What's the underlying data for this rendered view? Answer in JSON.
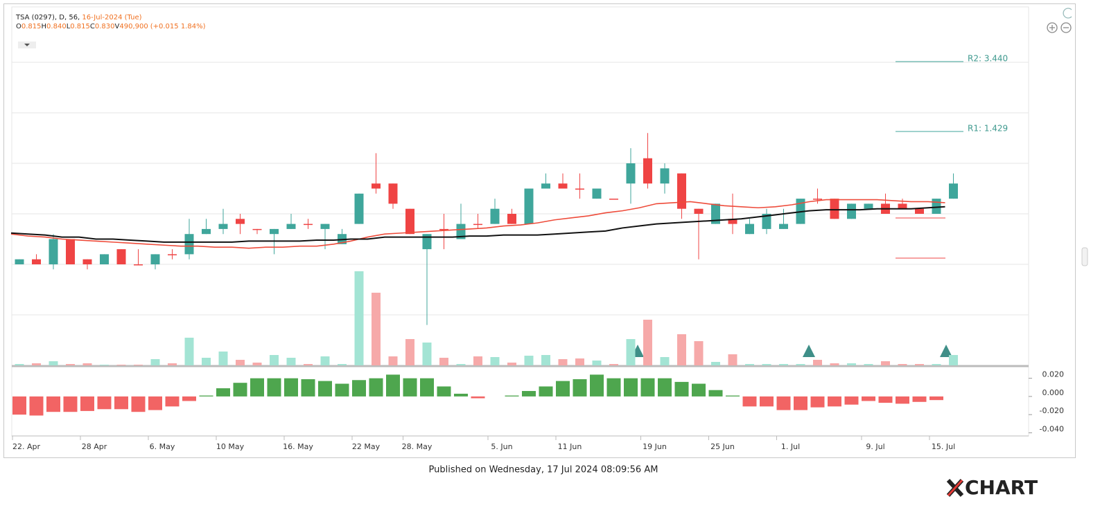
{
  "header": {
    "symbol": "TSA (0297), D, 56,",
    "date": "16-Jul-2024 (Tue)",
    "quote": [
      {
        "key": "O",
        "value": "0.815"
      },
      {
        "key": "H",
        "value": "0.840"
      },
      {
        "key": "L",
        "value": "0.815"
      },
      {
        "key": "C",
        "value": "0.830"
      },
      {
        "key": "V",
        "value": "490,900"
      }
    ],
    "change": "(+0.015 1.84%)"
  },
  "chart_data": {
    "type": "candlestick",
    "categories": [
      "22. Apr",
      null,
      null,
      null,
      "28 Apr",
      null,
      null,
      null,
      "6. May",
      null,
      null,
      null,
      "10 May",
      null,
      null,
      null,
      "16. May",
      null,
      null,
      null,
      "22 May",
      null,
      null,
      "28. May",
      null,
      null,
      null,
      null,
      "5. Jun",
      null,
      null,
      null,
      "11 Jun",
      null,
      null,
      null,
      null,
      "19 Jun",
      null,
      null,
      null,
      "25 Jun",
      null,
      null,
      null,
      "1. Jul",
      null,
      null,
      null,
      null,
      "9. Jul",
      null,
      null,
      null,
      "15. Jul",
      null
    ],
    "open": [
      0.75,
      0.755,
      0.75,
      0.775,
      0.755,
      0.75,
      0.765,
      0.75,
      0.75,
      0.76,
      0.76,
      0.78,
      0.785,
      0.795,
      0.785,
      0.78,
      0.785,
      0.79,
      0.785,
      0.77,
      0.79,
      0.83,
      0.83,
      0.805,
      0.765,
      0.785,
      0.775,
      0.79,
      0.79,
      0.8,
      0.79,
      0.825,
      0.83,
      0.825,
      0.815,
      0.815,
      0.83,
      0.855,
      0.83,
      0.84,
      0.805,
      0.79,
      0.795,
      0.78,
      0.785,
      0.785,
      0.79,
      0.815,
      0.815,
      0.795,
      0.805,
      0.81,
      0.81,
      0.805,
      0.8,
      0.815
    ],
    "high": [
      0.755,
      0.76,
      0.78,
      0.775,
      0.755,
      0.76,
      0.765,
      0.765,
      0.76,
      0.765,
      0.795,
      0.795,
      0.805,
      0.8,
      0.785,
      0.785,
      0.8,
      0.795,
      0.79,
      0.785,
      0.82,
      0.86,
      0.83,
      0.805,
      0.78,
      0.8,
      0.81,
      0.8,
      0.815,
      0.805,
      0.825,
      0.84,
      0.84,
      0.84,
      0.825,
      0.815,
      0.865,
      0.88,
      0.85,
      0.84,
      0.805,
      0.81,
      0.82,
      0.795,
      0.805,
      0.805,
      0.815,
      0.825,
      0.815,
      0.81,
      0.81,
      0.82,
      0.815,
      0.805,
      0.815,
      0.84
    ],
    "low": [
      0.75,
      0.75,
      0.745,
      0.75,
      0.745,
      0.75,
      0.75,
      0.75,
      0.745,
      0.755,
      0.755,
      0.78,
      0.78,
      0.78,
      0.78,
      0.76,
      0.785,
      0.785,
      0.765,
      0.77,
      0.79,
      0.82,
      0.805,
      0.78,
      0.69,
      0.765,
      0.775,
      0.785,
      0.79,
      0.79,
      0.79,
      0.825,
      0.825,
      0.815,
      0.815,
      0.815,
      0.81,
      0.825,
      0.82,
      0.795,
      0.755,
      0.79,
      0.78,
      0.78,
      0.78,
      0.785,
      0.79,
      0.81,
      0.795,
      0.795,
      0.805,
      0.8,
      0.805,
      0.8,
      0.8,
      0.815
    ],
    "close": [
      0.755,
      0.75,
      0.775,
      0.75,
      0.75,
      0.76,
      0.75,
      0.75,
      0.76,
      0.76,
      0.78,
      0.785,
      0.79,
      0.79,
      0.785,
      0.785,
      0.79,
      0.79,
      0.79,
      0.78,
      0.82,
      0.825,
      0.81,
      0.78,
      0.78,
      0.785,
      0.79,
      0.79,
      0.805,
      0.79,
      0.825,
      0.83,
      0.825,
      0.825,
      0.825,
      0.815,
      0.85,
      0.83,
      0.845,
      0.805,
      0.8,
      0.81,
      0.79,
      0.79,
      0.8,
      0.79,
      0.815,
      0.815,
      0.795,
      0.81,
      0.81,
      0.8,
      0.805,
      0.8,
      0.815,
      0.83
    ],
    "volume": [
      65000,
      98000,
      196000,
      65000,
      98000,
      33000,
      33000,
      33000,
      295000,
      98000,
      1309000,
      360000,
      655000,
      262000,
      131000,
      491000,
      360000,
      65000,
      425000,
      65000,
      4451000,
      3436000,
      425000,
      1244000,
      1080000,
      360000,
      65000,
      425000,
      393000,
      131000,
      458000,
      491000,
      295000,
      327000,
      229000,
      65000,
      1244000,
      2160000,
      393000,
      1473000,
      1145000,
      164000,
      524000,
      65000,
      65000,
      65000,
      65000,
      262000,
      98000,
      98000,
      65000,
      196000,
      65000,
      65000,
      65000,
      490900
    ],
    "ma_short": {
      "color": "#ee4b3a",
      "values": [
        0.78,
        0.778,
        0.777,
        0.775,
        0.774,
        0.773,
        0.772,
        0.771,
        0.77,
        0.769,
        0.768,
        0.768,
        0.767,
        0.767,
        0.766,
        0.767,
        0.767,
        0.768,
        0.768,
        0.77,
        0.773,
        0.777,
        0.78,
        0.781,
        0.782,
        0.783,
        0.784,
        0.785,
        0.786,
        0.788,
        0.789,
        0.791,
        0.794,
        0.796,
        0.798,
        0.801,
        0.803,
        0.806,
        0.81,
        0.811,
        0.812,
        0.81,
        0.808,
        0.807,
        0.806,
        0.807,
        0.809,
        0.812,
        0.814,
        0.814,
        0.814,
        0.814,
        0.813,
        0.812,
        0.812,
        0.811
      ]
    },
    "ma_long": {
      "color": "#111111",
      "values": [
        0.781,
        0.78,
        0.779,
        0.777,
        0.777,
        0.775,
        0.775,
        0.774,
        0.773,
        0.772,
        0.772,
        0.772,
        0.772,
        0.772,
        0.773,
        0.773,
        0.773,
        0.773,
        0.774,
        0.774,
        0.775,
        0.775,
        0.777,
        0.777,
        0.777,
        0.777,
        0.777,
        0.778,
        0.778,
        0.779,
        0.779,
        0.779,
        0.78,
        0.781,
        0.782,
        0.783,
        0.786,
        0.788,
        0.79,
        0.791,
        0.792,
        0.793,
        0.794,
        0.795,
        0.797,
        0.799,
        0.801,
        0.803,
        0.804,
        0.804,
        0.804,
        0.805,
        0.805,
        0.805,
        0.806,
        0.807
      ]
    },
    "up_color": "#3fa69b",
    "down_color": "#ef4444",
    "up_volume_color": "#a3e4d4",
    "down_volume_color": "#f6a9a9",
    "ylim": [
      0.65,
      1.0
    ],
    "ygrid": [
      0.7,
      0.75,
      0.8,
      0.85,
      0.9,
      0.95
    ],
    "pivots": [
      {
        "label": "R2: 3.440"
      },
      {
        "label": "R1: 1.429"
      }
    ],
    "macd": {
      "values": [
        -0.02,
        -0.021,
        -0.017,
        -0.017,
        -0.016,
        -0.014,
        -0.014,
        -0.017,
        -0.015,
        -0.011,
        -0.005,
        0.001,
        0.009,
        0.015,
        0.02,
        0.02,
        0.02,
        0.019,
        0.017,
        0.014,
        0.018,
        0.02,
        0.024,
        0.02,
        0.02,
        0.011,
        0.003,
        -0.002,
        0,
        0.001,
        0.006,
        0.011,
        0.017,
        0.019,
        0.024,
        0.02,
        0.02,
        0.02,
        0.02,
        0.016,
        0.014,
        0.007,
        0.001,
        -0.011,
        -0.011,
        -0.015,
        -0.015,
        -0.012,
        -0.011,
        -0.009,
        -0.005,
        -0.007,
        -0.008,
        -0.006,
        -0.004,
        0
      ],
      "pos_color": "#4ea64e",
      "neg_color": "#f26464",
      "ylim": [
        -0.045,
        0.03
      ],
      "yticks": [
        {
          "value": 0.02,
          "label": "0.020"
        },
        {
          "value": 0,
          "label": "0.000"
        },
        {
          "value": -0.02,
          "label": "-0.020"
        },
        {
          "value": -0.04,
          "label": "-0.040"
        }
      ]
    }
  },
  "footer": {
    "published": "Published on Wednesday, 17 Jul 2024 08:09:56 AM",
    "logo": "CHART"
  }
}
